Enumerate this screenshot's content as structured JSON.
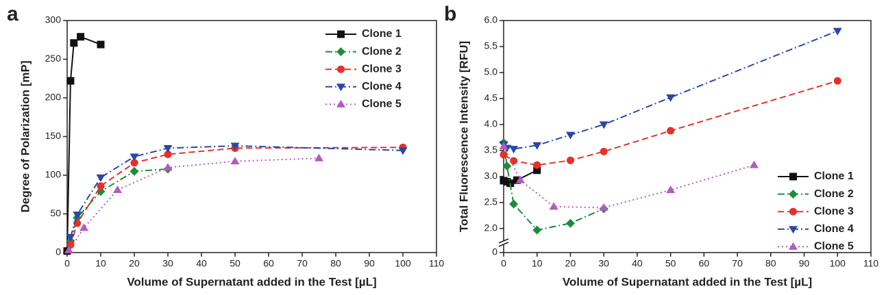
{
  "chart_data": [
    {
      "type": "line",
      "panel_label": "a",
      "x_label": "Volume of Supernatant added in the Test [µL]",
      "y_label": "Degree of Polarization [mP]",
      "xlim": [
        0,
        110
      ],
      "xticks": [
        0,
        10,
        20,
        30,
        40,
        50,
        60,
        70,
        80,
        90,
        100,
        110
      ],
      "ylim": [
        0,
        300
      ],
      "yticks": [
        0,
        50,
        100,
        150,
        200,
        250,
        300
      ],
      "legend": "upper right",
      "series": [
        {
          "name": "Clone 1",
          "color": "#111111",
          "marker": "square",
          "dash": "solid",
          "x": [
            0,
            1,
            2,
            4,
            10
          ],
          "values": [
            2,
            222,
            271,
            279,
            269
          ]
        },
        {
          "name": "Clone 2",
          "color": "#1e8c3a",
          "marker": "diamond",
          "dash": "dashdot",
          "x": [
            1,
            3,
            10,
            20,
            30
          ],
          "values": [
            15,
            45,
            79,
            105,
            108
          ]
        },
        {
          "name": "Clone 3",
          "color": "#e8302a",
          "marker": "circle",
          "dash": "dashed",
          "x": [
            1,
            3,
            10,
            20,
            30,
            50,
            100
          ],
          "values": [
            10,
            38,
            86,
            116,
            127,
            135,
            136
          ]
        },
        {
          "name": "Clone 4",
          "color": "#2a47a8",
          "marker": "triangle-down",
          "dash": "dashdot",
          "x": [
            1,
            3,
            10,
            20,
            30,
            50,
            100
          ],
          "values": [
            20,
            49,
            97,
            124,
            135,
            138,
            132
          ]
        },
        {
          "name": "Clone 5",
          "color": "#b35ac0",
          "marker": "triangle-up",
          "dash": "dotted",
          "x": [
            0.5,
            5,
            15,
            30,
            50,
            75
          ],
          "values": [
            3,
            32,
            81,
            110,
            118,
            122
          ]
        }
      ]
    },
    {
      "type": "line",
      "panel_label": "b",
      "x_label": "Volume of Supernatant added in the Test [µL]",
      "y_label": "Total Fluorescence Intensity [RFU]",
      "xlim": [
        0,
        110
      ],
      "xticks": [
        0,
        10,
        20,
        30,
        40,
        50,
        60,
        70,
        80,
        90,
        100,
        110
      ],
      "ylim": [
        0,
        6
      ],
      "y_break": [
        0.1,
        1.8
      ],
      "yticks": [
        0,
        {
          "value": 2,
          "label": "2.0"
        },
        2.5,
        {
          "value": 3,
          "label": "3.0"
        },
        3.5,
        {
          "value": 4,
          "label": "4.0"
        },
        4.5,
        {
          "value": 5,
          "label": "5.0"
        },
        5.5,
        {
          "value": 6,
          "label": "6.0"
        }
      ],
      "legend": "lower right",
      "series": [
        {
          "name": "Clone 1",
          "color": "#111111",
          "marker": "square",
          "dash": "solid",
          "x": [
            0,
            1,
            2,
            4,
            10
          ],
          "values": [
            2.92,
            2.9,
            2.87,
            2.93,
            3.12
          ]
        },
        {
          "name": "Clone 2",
          "color": "#1e8c3a",
          "marker": "diamond",
          "dash": "dashdot",
          "x": [
            0,
            1,
            3,
            10,
            20,
            30
          ],
          "values": [
            3.65,
            3.2,
            2.47,
            1.97,
            2.1,
            2.38
          ]
        },
        {
          "name": "Clone 3",
          "color": "#e8302a",
          "marker": "circle",
          "dash": "dashed",
          "x": [
            0,
            3,
            10,
            20,
            30,
            50,
            100
          ],
          "values": [
            3.42,
            3.3,
            3.22,
            3.31,
            3.48,
            3.88,
            4.84
          ]
        },
        {
          "name": "Clone 4",
          "color": "#2a47a8",
          "marker": "triangle-down",
          "dash": "dashdot",
          "x": [
            0,
            1,
            3,
            10,
            20,
            30,
            50,
            100
          ],
          "values": [
            3.62,
            3.55,
            3.53,
            3.6,
            3.8,
            4.0,
            4.52,
            5.8
          ]
        },
        {
          "name": "Clone 5",
          "color": "#b35ac0",
          "marker": "triangle-up",
          "dash": "dotted",
          "x": [
            0,
            5,
            15,
            30,
            50,
            75
          ],
          "values": [
            3.58,
            2.93,
            2.42,
            2.4,
            2.74,
            3.22
          ]
        }
      ]
    }
  ]
}
